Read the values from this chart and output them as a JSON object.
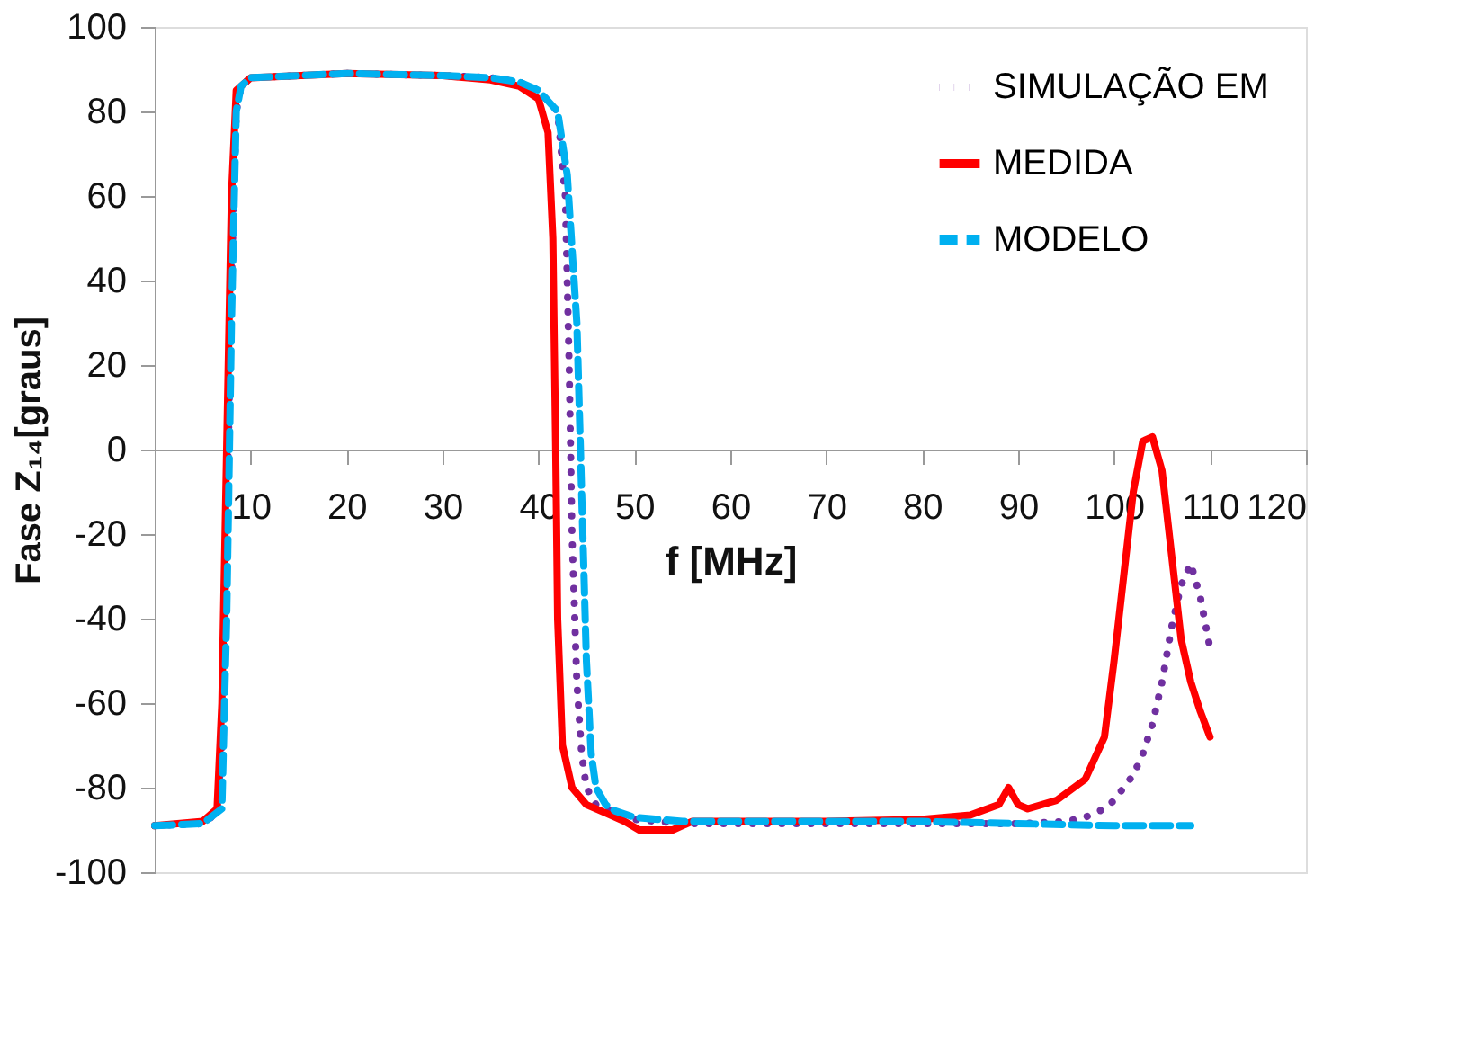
{
  "chart_data": {
    "type": "line",
    "xlabel": "f [MHz]",
    "ylabel": "Fase Z₁₄[graus]",
    "xlim": [
      0,
      120
    ],
    "xticks": [
      10,
      20,
      30,
      40,
      50,
      60,
      70,
      80,
      90,
      100,
      110,
      120
    ],
    "ylim": [
      -100,
      100
    ],
    "yticks": [
      -100,
      -80,
      -60,
      -40,
      -20,
      0,
      20,
      40,
      60,
      80,
      100
    ],
    "grid": false,
    "legend": "top right",
    "marker": "none",
    "series": [
      {
        "name": "SIMULAÇÃO EM",
        "color": "#7030a0",
        "line_style": "dotted",
        "x": [
          0,
          5,
          6.5,
          7,
          7.5,
          8,
          8.5,
          9,
          10,
          20,
          30,
          35,
          38,
          40,
          42,
          42.8,
          43.2,
          43.5,
          44,
          44.5,
          45,
          46,
          48,
          50,
          55,
          60,
          70,
          80,
          90,
          95,
          97,
          99,
          100,
          101,
          102,
          103,
          104,
          105,
          106,
          107,
          108,
          109,
          110
        ],
        "values": [
          -89,
          -88.5,
          -86,
          -70,
          -20,
          40,
          80,
          86,
          88,
          89,
          88.5,
          88,
          87,
          85,
          80,
          60,
          20,
          -20,
          -55,
          -72,
          -80,
          -84,
          -86,
          -87.5,
          -88.5,
          -88.5,
          -88.5,
          -88.5,
          -88.5,
          -88,
          -87,
          -85,
          -83,
          -80,
          -77,
          -72,
          -65,
          -55,
          -42,
          -32,
          -27,
          -35,
          -47
        ]
      },
      {
        "name": "MEDIDA",
        "color": "#ff0000",
        "line_style": "solid",
        "x": [
          0,
          5,
          6.5,
          7,
          7.5,
          8,
          8.5,
          10,
          20,
          30,
          35,
          38,
          40,
          41,
          41.5,
          41.8,
          42,
          42.5,
          43.5,
          45,
          47,
          49,
          50.5,
          54,
          56,
          60,
          70,
          80,
          85,
          88,
          89,
          90,
          91,
          94,
          97,
          99,
          100,
          101,
          102,
          103,
          104,
          105,
          106,
          107,
          108,
          109,
          110
        ],
        "values": [
          -89,
          -88,
          -85,
          -60,
          0,
          60,
          85,
          88,
          89,
          88.5,
          87.5,
          86,
          83,
          75,
          50,
          0,
          -40,
          -70,
          -80,
          -84,
          -86,
          -88,
          -90,
          -90,
          -88,
          -88,
          -88,
          -87.5,
          -86.5,
          -84,
          -80,
          -84,
          -85,
          -83,
          -78,
          -68,
          -50,
          -30,
          -10,
          2,
          3,
          -5,
          -25,
          -45,
          -55,
          -62,
          -68
        ]
      },
      {
        "name": "MODELO",
        "color": "#00b0f0",
        "line_style": "dashed",
        "x": [
          0,
          5,
          7,
          7.5,
          8,
          8.5,
          9,
          10,
          20,
          30,
          35,
          38,
          40,
          42,
          43,
          44,
          44.5,
          45,
          45.5,
          46,
          47,
          48,
          50,
          55,
          60,
          70,
          80,
          90,
          100,
          108
        ],
        "values": [
          -89,
          -88.5,
          -85,
          -40,
          30,
          80,
          86,
          88,
          89,
          88.5,
          88,
          87,
          85,
          80,
          65,
          30,
          -10,
          -50,
          -72,
          -80,
          -84,
          -85.5,
          -87,
          -88,
          -88,
          -88,
          -88,
          -88.5,
          -89,
          -89
        ]
      }
    ]
  }
}
